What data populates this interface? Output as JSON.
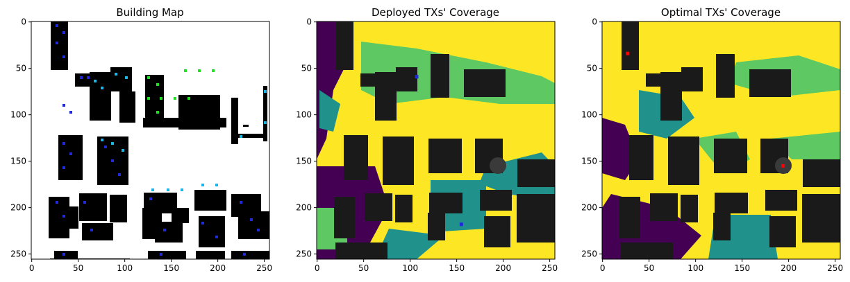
{
  "chart_data": [
    {
      "type": "heatmap",
      "title": "Building Map",
      "xlim": [
        0,
        255
      ],
      "ylim": [
        255,
        0
      ],
      "xticks": [
        0,
        50,
        100,
        150,
        200,
        250
      ],
      "yticks": [
        0,
        50,
        100,
        150,
        200,
        250
      ],
      "grid": false,
      "colors": {
        "background": "#ffffff",
        "building": "#000000",
        "marker_blue": "#1f2bd8",
        "marker_cyan": "#19b6e6",
        "marker_green": "#22e022"
      }
    },
    {
      "type": "heatmap",
      "title": "Deployed TXs' Coverage",
      "xlim": [
        0,
        255
      ],
      "ylim": [
        255,
        0
      ],
      "xticks": [
        0,
        50,
        100,
        150,
        200,
        250
      ],
      "yticks": [
        0,
        50,
        100,
        150,
        200,
        250
      ],
      "grid": false,
      "colors": {
        "high": "#fde725",
        "mid_high": "#5ec962",
        "mid_low": "#21918c",
        "low": "#440154",
        "building": "#1a1a1a"
      },
      "tx_markers": [
        {
          "x": 107,
          "y": 59,
          "color": "#1f2bd8"
        },
        {
          "x": 155,
          "y": 218,
          "color": "#1f2bd8"
        }
      ]
    },
    {
      "type": "heatmap",
      "title": "Optimal TXs' Coverage",
      "xlim": [
        0,
        255
      ],
      "ylim": [
        255,
        0
      ],
      "xticks": [
        0,
        50,
        100,
        150,
        200,
        250
      ],
      "yticks": [
        0,
        50,
        100,
        150,
        200,
        250
      ],
      "grid": false,
      "colors": {
        "high": "#fde725",
        "mid_high": "#5ec962",
        "mid_low": "#21918c",
        "low": "#440154",
        "building": "#1a1a1a"
      },
      "tx_markers": [
        {
          "x": 27,
          "y": 34,
          "color": "#ff0000"
        },
        {
          "x": 194,
          "y": 155,
          "color": "#ff0000"
        }
      ]
    }
  ]
}
